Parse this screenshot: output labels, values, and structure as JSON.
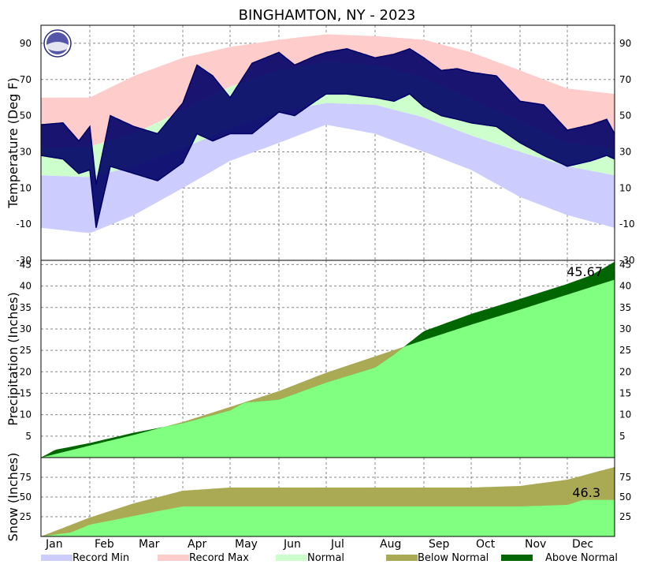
{
  "chart_data": {
    "type": "line",
    "title": "BINGHAMTON, NY - 2023",
    "months": [
      "Jan",
      "Feb",
      "Mar",
      "Apr",
      "May",
      "Jun",
      "Jul",
      "Aug",
      "Sep",
      "Oct",
      "Nov",
      "Dec"
    ],
    "colors": {
      "record_min": "#ccccff",
      "record_max": "#ffcccc",
      "normal": "#ccffcc",
      "observed": "#000066",
      "precip_fill": "#80ff80",
      "below_normal": "#aaaa55",
      "above_normal": "#006600"
    },
    "legend": [
      {
        "label": "Record Min",
        "color": "#ccccff"
      },
      {
        "label": "Record Max",
        "color": "#ffcccc"
      },
      {
        "label": "Normal",
        "color": "#ccffcc"
      },
      {
        "label": "Below Normal",
        "color": "#aaaa55"
      },
      {
        "label": "Above Normal",
        "color": "#006600"
      }
    ],
    "panels": {
      "temperature": {
        "ylabel": "Temperature (Deg F)",
        "ylim": [
          -30,
          100
        ],
        "ticks": [
          90,
          70,
          50,
          30,
          10,
          -10,
          -30
        ],
        "tick_labels": [
          "90",
          "70",
          "50",
          "30",
          "10",
          "-10",
          "-30"
        ],
        "normal_high": [
          [
            1,
            32
          ],
          [
            32,
            33
          ],
          [
            60,
            40
          ],
          [
            91,
            53
          ],
          [
            121,
            66
          ],
          [
            152,
            75
          ],
          [
            182,
            80
          ],
          [
            213,
            78
          ],
          [
            244,
            71
          ],
          [
            274,
            59
          ],
          [
            305,
            47
          ],
          [
            335,
            35
          ],
          [
            365,
            32
          ]
        ],
        "normal_low": [
          [
            1,
            17
          ],
          [
            32,
            16
          ],
          [
            60,
            22
          ],
          [
            91,
            32
          ],
          [
            121,
            43
          ],
          [
            152,
            52
          ],
          [
            182,
            57
          ],
          [
            213,
            56
          ],
          [
            244,
            49
          ],
          [
            274,
            39
          ],
          [
            305,
            30
          ],
          [
            335,
            22
          ],
          [
            365,
            17
          ]
        ],
        "record_high": [
          [
            1,
            60
          ],
          [
            32,
            60
          ],
          [
            60,
            72
          ],
          [
            91,
            82
          ],
          [
            121,
            88
          ],
          [
            152,
            92
          ],
          [
            182,
            95
          ],
          [
            213,
            94
          ],
          [
            244,
            92
          ],
          [
            274,
            85
          ],
          [
            305,
            75
          ],
          [
            335,
            65
          ],
          [
            365,
            62
          ]
        ],
        "record_low": [
          [
            1,
            -12
          ],
          [
            32,
            -15
          ],
          [
            60,
            -5
          ],
          [
            91,
            10
          ],
          [
            121,
            25
          ],
          [
            152,
            35
          ],
          [
            182,
            45
          ],
          [
            213,
            40
          ],
          [
            244,
            30
          ],
          [
            274,
            20
          ],
          [
            305,
            5
          ],
          [
            335,
            -5
          ],
          [
            365,
            -12
          ]
        ],
        "observed_high": [
          [
            1,
            45
          ],
          [
            15,
            46
          ],
          [
            25,
            36
          ],
          [
            32,
            44
          ],
          [
            36,
            12
          ],
          [
            45,
            50
          ],
          [
            60,
            44
          ],
          [
            75,
            40
          ],
          [
            91,
            57
          ],
          [
            100,
            78
          ],
          [
            110,
            72
          ],
          [
            121,
            60
          ],
          [
            135,
            79
          ],
          [
            152,
            85
          ],
          [
            162,
            78
          ],
          [
            175,
            83
          ],
          [
            182,
            85
          ],
          [
            195,
            87
          ],
          [
            213,
            82
          ],
          [
            225,
            84
          ],
          [
            235,
            87
          ],
          [
            244,
            82
          ],
          [
            255,
            75
          ],
          [
            265,
            76
          ],
          [
            274,
            74
          ],
          [
            290,
            72
          ],
          [
            305,
            58
          ],
          [
            320,
            56
          ],
          [
            335,
            42
          ],
          [
            350,
            45
          ],
          [
            360,
            48
          ],
          [
            365,
            40
          ]
        ],
        "observed_low": [
          [
            1,
            28
          ],
          [
            15,
            26
          ],
          [
            25,
            18
          ],
          [
            32,
            20
          ],
          [
            36,
            -12
          ],
          [
            45,
            22
          ],
          [
            60,
            18
          ],
          [
            75,
            14
          ],
          [
            91,
            24
          ],
          [
            100,
            40
          ],
          [
            110,
            36
          ],
          [
            121,
            40
          ],
          [
            135,
            40
          ],
          [
            152,
            52
          ],
          [
            162,
            50
          ],
          [
            175,
            58
          ],
          [
            182,
            62
          ],
          [
            195,
            62
          ],
          [
            213,
            60
          ],
          [
            225,
            58
          ],
          [
            235,
            62
          ],
          [
            244,
            55
          ],
          [
            255,
            50
          ],
          [
            265,
            48
          ],
          [
            274,
            46
          ],
          [
            290,
            44
          ],
          [
            305,
            35
          ],
          [
            320,
            28
          ],
          [
            335,
            22
          ],
          [
            350,
            25
          ],
          [
            360,
            28
          ],
          [
            365,
            26
          ]
        ]
      },
      "precipitation": {
        "ylabel": "Precipitation (Inches)",
        "ylim": [
          0,
          46
        ],
        "ticks": [
          45,
          40,
          35,
          30,
          25,
          20,
          15,
          10,
          5
        ],
        "tick_labels": [
          "45",
          "40",
          "35",
          "30",
          "25",
          "20",
          "15",
          "10",
          "5"
        ],
        "total_label": "45.67",
        "normal_cumulative": [
          [
            1,
            0
          ],
          [
            32,
            2.8
          ],
          [
            60,
            5.3
          ],
          [
            91,
            8.3
          ],
          [
            121,
            11.8
          ],
          [
            152,
            15.5
          ],
          [
            182,
            19.8
          ],
          [
            213,
            23.6
          ],
          [
            244,
            27.4
          ],
          [
            274,
            31.0
          ],
          [
            305,
            34.5
          ],
          [
            335,
            38.0
          ],
          [
            365,
            41.5
          ]
        ],
        "observed_cumulative": [
          [
            1,
            0
          ],
          [
            10,
            1.8
          ],
          [
            32,
            3.4
          ],
          [
            60,
            5.8
          ],
          [
            91,
            8.0
          ],
          [
            121,
            11.0
          ],
          [
            130,
            12.8
          ],
          [
            152,
            13.5
          ],
          [
            182,
            17.5
          ],
          [
            213,
            21.0
          ],
          [
            225,
            24.0
          ],
          [
            244,
            29.5
          ],
          [
            274,
            33.5
          ],
          [
            305,
            37.0
          ],
          [
            335,
            40.5
          ],
          [
            350,
            42.5
          ],
          [
            365,
            45.67
          ]
        ]
      },
      "snow": {
        "ylabel": "Snow (Inches)",
        "ylim": [
          0,
          100
        ],
        "ticks": [
          75,
          50,
          25
        ],
        "tick_labels": [
          "75",
          "50",
          "25"
        ],
        "total_label": "46.3",
        "normal_cumulative": [
          [
            1,
            0
          ],
          [
            32,
            24
          ],
          [
            60,
            42
          ],
          [
            91,
            58
          ],
          [
            121,
            62
          ],
          [
            152,
            62
          ],
          [
            182,
            62
          ],
          [
            213,
            62
          ],
          [
            244,
            62
          ],
          [
            274,
            62
          ],
          [
            305,
            64
          ],
          [
            335,
            72
          ],
          [
            365,
            88
          ]
        ],
        "observed_cumulative": [
          [
            1,
            0
          ],
          [
            20,
            5
          ],
          [
            32,
            15
          ],
          [
            45,
            20
          ],
          [
            60,
            26
          ],
          [
            75,
            32
          ],
          [
            91,
            38
          ],
          [
            152,
            38
          ],
          [
            213,
            38
          ],
          [
            244,
            38
          ],
          [
            305,
            38
          ],
          [
            335,
            40
          ],
          [
            345,
            46.3
          ],
          [
            365,
            46.3
          ]
        ]
      }
    }
  }
}
